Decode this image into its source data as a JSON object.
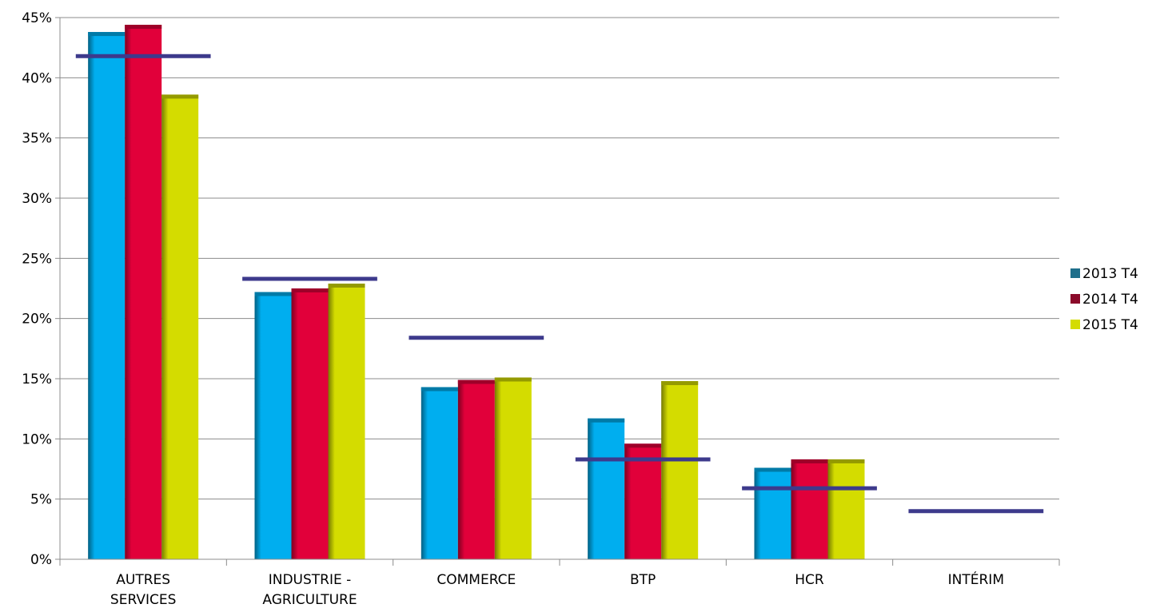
{
  "chart_data": {
    "type": "bar",
    "categories": [
      [
        "AUTRES",
        "SERVICES"
      ],
      [
        "INDUSTRIE -",
        "AGRICULTURE"
      ],
      [
        "COMMERCE"
      ],
      [
        "BTP"
      ],
      [
        "HCR"
      ],
      [
        "INTÉRIM"
      ]
    ],
    "series": [
      {
        "name": "2013 T4",
        "color": "#00AEEF",
        "legend_color": "#1F6F8B",
        "values": [
          43.8,
          22.2,
          14.3,
          11.7,
          7.6,
          null
        ]
      },
      {
        "name": "2014 T4",
        "color": "#E1003A",
        "legend_color": "#8B0A2A",
        "values": [
          44.4,
          22.5,
          14.9,
          9.6,
          8.3,
          null
        ]
      },
      {
        "name": "2015 T4",
        "color": "#D4DC00",
        "legend_color": "#D4DC00",
        "values": [
          38.6,
          22.9,
          15.1,
          14.8,
          8.3,
          null
        ]
      }
    ],
    "reference_lines": {
      "color": "#3D3A8C",
      "values": [
        41.8,
        23.3,
        18.4,
        8.3,
        5.9,
        4.0
      ]
    },
    "y_ticks": [
      "0%",
      "5%",
      "10%",
      "15%",
      "20%",
      "25%",
      "30%",
      "35%",
      "40%",
      "45%"
    ],
    "ylim": [
      0,
      45
    ],
    "grid": true,
    "legend_position": "right",
    "title": "",
    "xlabel": "",
    "ylabel": ""
  }
}
